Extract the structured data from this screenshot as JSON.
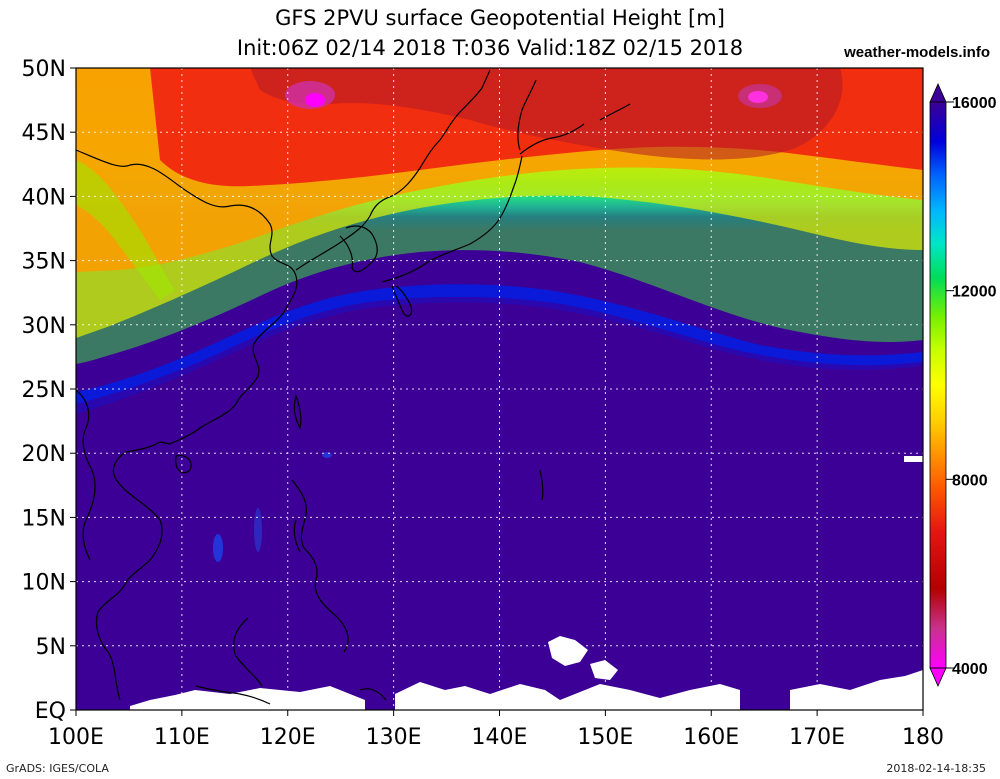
{
  "title": {
    "line1": "GFS 2PVU surface Geopotential Height [m]",
    "line2": "Init:06Z 02/14 2018 T:036 Valid:18Z 02/15 2018",
    "credit": "weather-models.info"
  },
  "map": {
    "lon_range": [
      100,
      180
    ],
    "lat_range": [
      0,
      50
    ],
    "lat_labels": [
      "EQ",
      "5N",
      "10N",
      "15N",
      "20N",
      "25N",
      "30N",
      "35N",
      "40N",
      "45N",
      "50N"
    ],
    "lon_labels": [
      "100E",
      "110E",
      "120E",
      "130E",
      "140E",
      "150E",
      "160E",
      "170E",
      "180"
    ],
    "gridlines": "dotted white"
  },
  "colorbar": {
    "labels": [
      "4000",
      "8000",
      "12000",
      "16000"
    ],
    "min": 4000,
    "max": 16000,
    "colors": [
      "#ff00ff",
      "#c8328c",
      "#b40000",
      "#e61414",
      "#ff5a00",
      "#ff9600",
      "#ffd200",
      "#ffff00",
      "#c8ff00",
      "#78f000",
      "#00dc5a",
      "#00e6c8",
      "#00b4ff",
      "#0064ff",
      "#0000dc",
      "#3c0096"
    ]
  },
  "footer": {
    "left": "GrADS: IGES/COLA",
    "right": "2018-02-14-18:35"
  }
}
